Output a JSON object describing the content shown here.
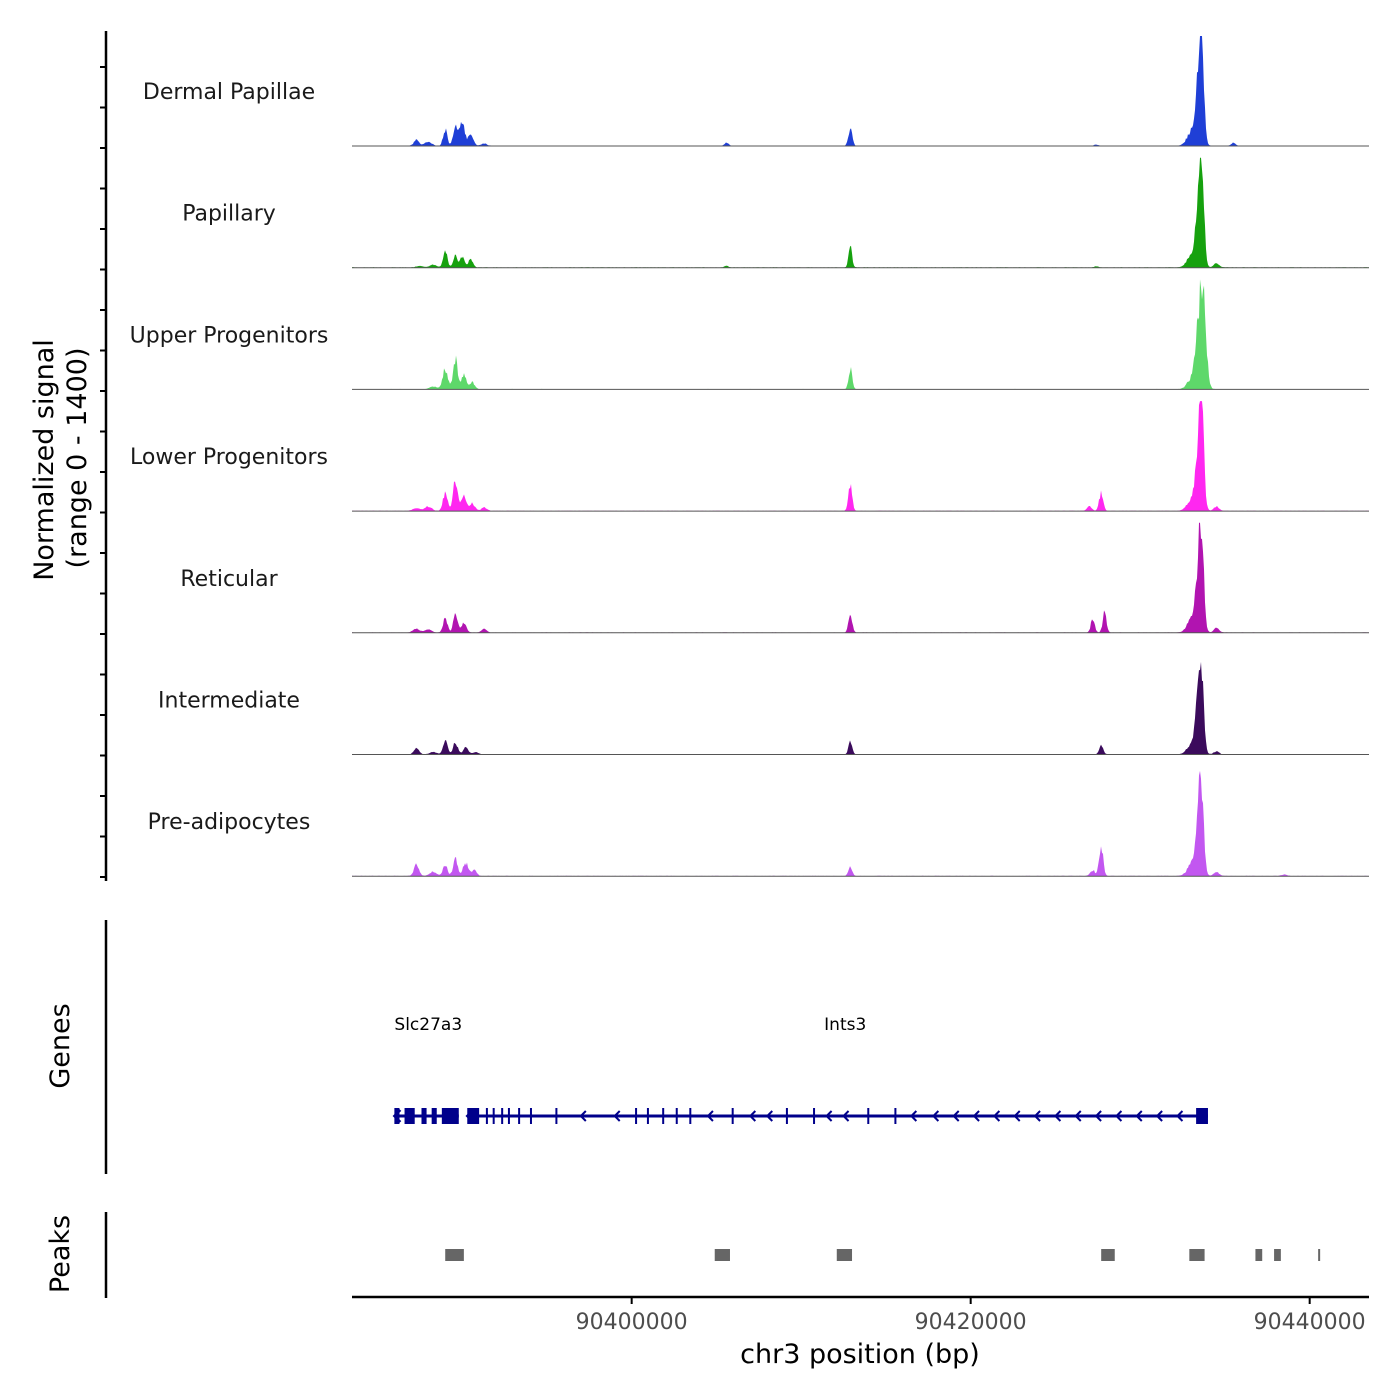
{
  "chart_data": {
    "type": "area",
    "title": "",
    "ylabel_line1": "Normalized signal",
    "ylabel_line2": "(range 0 - 1400)",
    "xlabel": "chr3 position (bp)",
    "xlim": [
      90383500,
      90443500
    ],
    "ylim": [
      0,
      1400
    ],
    "x_ticks": [
      90400000,
      90420000,
      90440000
    ],
    "x_tick_labels": [
      "90400000",
      "90420000",
      "90440000"
    ],
    "genes_label": "Genes",
    "peaks_label": "Peaks",
    "series": [
      {
        "name": "Dermal Papillae",
        "color": "#1f3fd6",
        "peaks": [
          [
            90387300,
            80,
            150
          ],
          [
            90388000,
            60,
            200
          ],
          [
            90389000,
            230,
            120
          ],
          [
            90389600,
            260,
            130
          ],
          [
            90390000,
            300,
            150
          ],
          [
            90390500,
            170,
            150
          ],
          [
            90391300,
            35,
            150
          ],
          [
            90405600,
            40,
            120
          ],
          [
            90412900,
            240,
            110
          ],
          [
            90427400,
            15,
            120
          ],
          [
            90433000,
            180,
            250
          ],
          [
            90433400,
            520,
            180
          ],
          [
            90433600,
            1400,
            150
          ],
          [
            90435500,
            40,
            120
          ]
        ]
      },
      {
        "name": "Papillary",
        "color": "#16a10e",
        "peaks": [
          [
            90387500,
            20,
            200
          ],
          [
            90388300,
            35,
            200
          ],
          [
            90389000,
            230,
            120
          ],
          [
            90389600,
            160,
            130
          ],
          [
            90390000,
            140,
            130
          ],
          [
            90390500,
            120,
            130
          ],
          [
            90405600,
            20,
            120
          ],
          [
            90412900,
            280,
            100
          ],
          [
            90427400,
            15,
            120
          ],
          [
            90433000,
            160,
            250
          ],
          [
            90433400,
            500,
            180
          ],
          [
            90433600,
            1400,
            150
          ],
          [
            90434500,
            60,
            150
          ]
        ]
      },
      {
        "name": "Upper Progenitors",
        "color": "#5ed86a",
        "peaks": [
          [
            90388300,
            40,
            200
          ],
          [
            90389000,
            280,
            150
          ],
          [
            90389600,
            420,
            130
          ],
          [
            90390100,
            190,
            150
          ],
          [
            90390600,
            90,
            150
          ],
          [
            90412900,
            300,
            100
          ],
          [
            90433000,
            130,
            250
          ],
          [
            90433400,
            600,
            180
          ],
          [
            90433700,
            1300,
            180
          ]
        ]
      },
      {
        "name": "Lower Progenitors",
        "color": "#ff27f0",
        "peaks": [
          [
            90387300,
            40,
            200
          ],
          [
            90388000,
            60,
            200
          ],
          [
            90389000,
            240,
            140
          ],
          [
            90389600,
            420,
            130
          ],
          [
            90390100,
            200,
            150
          ],
          [
            90390600,
            100,
            150
          ],
          [
            90391300,
            50,
            150
          ],
          [
            90412900,
            360,
            110
          ],
          [
            90427000,
            60,
            140
          ],
          [
            90427700,
            240,
            120
          ],
          [
            90433000,
            150,
            250
          ],
          [
            90433400,
            500,
            180
          ],
          [
            90433600,
            1400,
            150
          ],
          [
            90434500,
            60,
            150
          ]
        ]
      },
      {
        "name": "Reticular",
        "color": "#b114b0",
        "peaks": [
          [
            90387300,
            50,
            200
          ],
          [
            90388000,
            40,
            200
          ],
          [
            90389000,
            200,
            130
          ],
          [
            90389600,
            230,
            130
          ],
          [
            90390100,
            130,
            150
          ],
          [
            90391300,
            50,
            150
          ],
          [
            90412900,
            240,
            110
          ],
          [
            90427200,
            200,
            110
          ],
          [
            90427900,
            270,
            110
          ],
          [
            90433000,
            160,
            250
          ],
          [
            90433400,
            520,
            180
          ],
          [
            90433600,
            1230,
            150
          ],
          [
            90434500,
            60,
            150
          ]
        ]
      },
      {
        "name": "Intermediate",
        "color": "#3b0b5c",
        "peaks": [
          [
            90387300,
            80,
            150
          ],
          [
            90388300,
            30,
            200
          ],
          [
            90389000,
            190,
            130
          ],
          [
            90389600,
            170,
            130
          ],
          [
            90390200,
            90,
            150
          ],
          [
            90390800,
            30,
            150
          ],
          [
            90412900,
            190,
            100
          ],
          [
            90427700,
            130,
            110
          ],
          [
            90433000,
            120,
            250
          ],
          [
            90433400,
            500,
            180
          ],
          [
            90433600,
            1060,
            150
          ],
          [
            90434500,
            40,
            150
          ]
        ]
      },
      {
        "name": "Pre-adipocytes",
        "color": "#c257f0",
        "peaks": [
          [
            90387300,
            150,
            150
          ],
          [
            90388300,
            60,
            200
          ],
          [
            90389000,
            150,
            130
          ],
          [
            90389600,
            240,
            130
          ],
          [
            90390200,
            180,
            150
          ],
          [
            90390700,
            80,
            150
          ],
          [
            90412900,
            130,
            110
          ],
          [
            90427200,
            80,
            140
          ],
          [
            90427700,
            410,
            120
          ],
          [
            90433000,
            140,
            250
          ],
          [
            90433400,
            500,
            180
          ],
          [
            90433600,
            1030,
            150
          ],
          [
            90434500,
            60,
            150
          ],
          [
            90438500,
            20,
            150
          ]
        ]
      }
    ],
    "genes": [
      {
        "name": "Slc27a3",
        "label_x": 90388000,
        "start": 90386000,
        "end": 90389800,
        "exons": [
          [
            90386000,
            90386300
          ],
          [
            90386600,
            90387200
          ],
          [
            90387600,
            90387900
          ],
          [
            90388200,
            90388500
          ],
          [
            90388800,
            90389800
          ]
        ]
      },
      {
        "name": "Ints3",
        "label_x": 90412600,
        "start": 90390300,
        "end": 90434000,
        "exons": [
          [
            90390300,
            90391000
          ],
          [
            90391400,
            90391500
          ],
          [
            90391800,
            90391900
          ],
          [
            90392300,
            90392400
          ],
          [
            90392700,
            90392800
          ],
          [
            90393300,
            90393400
          ],
          [
            90394000,
            90394100
          ],
          [
            90395500,
            90395600
          ],
          [
            90400200,
            90400300
          ],
          [
            90400900,
            90401000
          ],
          [
            90401800,
            90401900
          ],
          [
            90402600,
            90402700
          ],
          [
            90403400,
            90403500
          ],
          [
            90405900,
            90406000
          ],
          [
            90409100,
            90409200
          ],
          [
            90410700,
            90410800
          ],
          [
            90413900,
            90414000
          ],
          [
            90415500,
            90415600
          ],
          [
            90433300,
            90434000
          ]
        ],
        "arrows": [
          90397000,
          90399000,
          90404500,
          90407000,
          90408000,
          90411500,
          90412500,
          90416500,
          90417800,
          90419000,
          90420200,
          90421400,
          90422600,
          90423800,
          90425000,
          90426200,
          90427400,
          90428600,
          90429800,
          90431000,
          90432200
        ]
      }
    ],
    "peaks": [
      [
        90389000,
        90390100
      ],
      [
        90404900,
        90405800
      ],
      [
        90412100,
        90413000
      ],
      [
        90427700,
        90428500
      ],
      [
        90432900,
        90433800
      ],
      [
        90436800,
        90437200
      ],
      [
        90437900,
        90438300
      ],
      [
        90440500,
        90440600
      ]
    ]
  }
}
